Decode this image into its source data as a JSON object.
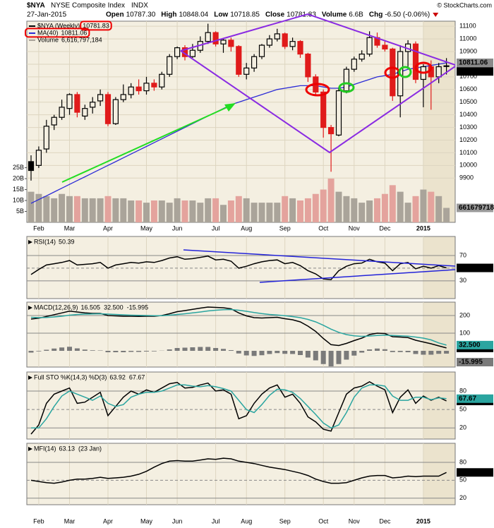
{
  "header": {
    "symbol": "$NYA",
    "name": "NYSE Composite Index",
    "exchange": "INDX",
    "date": "27-Jan-2015",
    "copyright": "© StockCharts.com",
    "quote": [
      {
        "label": "Open",
        "value": "10787.30"
      },
      {
        "label": "High",
        "value": "10848.04"
      },
      {
        "label": "Low",
        "value": "10718.85"
      },
      {
        "label": "Close",
        "value": "10781.83"
      },
      {
        "label": "Volume",
        "value": "6.6B"
      },
      {
        "label": "Chg",
        "value": "-6.50 (-0.06%)"
      }
    ]
  },
  "chart_data": [
    {
      "type": "candlestick",
      "categories": [
        null,
        "Feb",
        null,
        null,
        null,
        "Mar",
        null,
        null,
        null,
        null,
        "Apr",
        null,
        null,
        null,
        null,
        "May",
        null,
        null,
        null,
        "Jun",
        null,
        null,
        null,
        null,
        "Jul",
        null,
        null,
        null,
        "Aug",
        null,
        null,
        null,
        null,
        "Sep",
        null,
        null,
        null,
        null,
        "Oct",
        null,
        null,
        null,
        "Nov",
        null,
        null,
        null,
        "Dec",
        null,
        null,
        null,
        null,
        "2015",
        null,
        null,
        null
      ],
      "open": [
        10030,
        10000,
        10130,
        10320,
        10380,
        10450,
        10560,
        10390,
        10460,
        10510,
        10560,
        10330,
        10520,
        10560,
        10620,
        10590,
        10650,
        10620,
        10720,
        10860,
        10930,
        10860,
        10910,
        10980,
        11050,
        10960,
        10990,
        10940,
        10720,
        10770,
        10860,
        10950,
        11000,
        11040,
        10940,
        10980,
        10880,
        10700,
        10580,
        10300,
        10240,
        10590,
        10760,
        10840,
        10880,
        11010,
        10950,
        10920,
        10550,
        10900,
        10960,
        10680,
        10780,
        10700,
        10787.3
      ],
      "high": [
        10080,
        10150,
        10360,
        10400,
        10520,
        10570,
        10580,
        10480,
        10540,
        10600,
        10580,
        10540,
        10640,
        10650,
        10680,
        10700,
        10680,
        10740,
        10880,
        10940,
        10950,
        10960,
        11020,
        11120,
        11060,
        11000,
        11010,
        10950,
        10810,
        10880,
        10960,
        11030,
        11080,
        11050,
        11010,
        10990,
        10890,
        10720,
        10600,
        10320,
        10620,
        10780,
        10860,
        10910,
        11060,
        11050,
        10980,
        10930,
        10950,
        10990,
        10980,
        10800,
        10830,
        10810,
        10848.04
      ],
      "low": [
        9880,
        9980,
        10100,
        10280,
        10360,
        10400,
        10380,
        10360,
        10410,
        10470,
        10310,
        10320,
        10500,
        10530,
        10560,
        10560,
        10590,
        10600,
        10700,
        10840,
        10830,
        10850,
        10890,
        10960,
        10940,
        10890,
        10900,
        10700,
        10680,
        10740,
        10840,
        10930,
        10980,
        10920,
        10910,
        10850,
        10660,
        10560,
        10220,
        9950,
        10230,
        10570,
        10740,
        10820,
        10860,
        10930,
        10900,
        10510,
        10380,
        10780,
        10650,
        10460,
        10440,
        10650,
        10718.85
      ],
      "close": [
        9960,
        10120,
        10310,
        10380,
        10460,
        10560,
        10420,
        10450,
        10500,
        10560,
        10330,
        10520,
        10560,
        10620,
        10590,
        10650,
        10620,
        10720,
        10860,
        10930,
        10860,
        10910,
        10980,
        11050,
        10960,
        10990,
        10940,
        10720,
        10770,
        10860,
        10950,
        11000,
        11040,
        10940,
        10980,
        10880,
        10700,
        10580,
        10300,
        10250,
        10590,
        10760,
        10840,
        10880,
        11010,
        10950,
        10920,
        10550,
        10900,
        10960,
        10680,
        10780,
        10700,
        10780,
        10781.83
      ],
      "up_color": "#000000",
      "down_color": "#e01b1b",
      "ylim": [
        9550,
        11140
      ],
      "yticks": [
        9900,
        10000,
        10100,
        10200,
        10300,
        10400,
        10500,
        10600,
        10700,
        10800,
        10900,
        11000,
        11100
      ],
      "ma": {
        "color": "#2b2bd6",
        "values": [
          9700,
          9730,
          9760,
          9790,
          9820,
          9850,
          9880,
          9910,
          9940,
          9970,
          10000,
          10030,
          10060,
          10090,
          10120,
          10150,
          10180,
          10210,
          10240,
          10270,
          10300,
          10330,
          10360,
          10390,
          10420,
          10450,
          10480,
          10500,
          10520,
          10540,
          10560,
          10580,
          10600,
          10610,
          10620,
          10630,
          10630,
          10630,
          10620,
          10610,
          10610,
          10620,
          10640,
          10660,
          10680,
          10700,
          10710,
          10720,
          10740,
          10760,
          10770,
          10780,
          10790,
          10800,
          10811.06
        ]
      },
      "volume": {
        "up_color": "#aaa49a",
        "down_color": "#e4a39d",
        "ylim": [
          0,
          92000000000
        ],
        "yticks": [
          {
            "value": 5000000000,
            "label": "5B"
          },
          {
            "value": 10000000000,
            "label": "10B"
          },
          {
            "value": 15000000000,
            "label": "15B"
          },
          {
            "value": 20000000000,
            "label": "20B"
          },
          {
            "value": 25000000000,
            "label": "25B"
          }
        ],
        "values": [
          14000000000,
          13000000000,
          12000000000,
          11000000000,
          13000000000,
          12000000000,
          12000000000,
          11000000000,
          11000000000,
          11000000000,
          12000000000,
          11000000000,
          11000000000,
          10000000000,
          10000000000,
          9000000000,
          10000000000,
          10000000000,
          9000000000,
          11000000000,
          10000000000,
          10000000000,
          9000000000,
          11000000000,
          11000000000,
          8000000000,
          10000000000,
          12000000000,
          11000000000,
          9000000000,
          9000000000,
          9000000000,
          9000000000,
          12000000000,
          11000000000,
          10000000000,
          11000000000,
          13000000000,
          15000000000,
          20000000000,
          14000000000,
          12000000000,
          11000000000,
          9000000000,
          10000000000,
          11000000000,
          13000000000,
          17000000000,
          14000000000,
          9000000000,
          12000000000,
          15000000000,
          14000000000,
          12000000000,
          6616797184
        ]
      },
      "legend": [
        {
          "name": "$NYA (Weekly)",
          "value": "10781.83"
        },
        {
          "name": "MA(40)",
          "value": "10811.06"
        },
        {
          "name": "Volume",
          "value": "6,616,797,184"
        }
      ]
    },
    {
      "type": "line",
      "ylim": [
        2,
        100
      ],
      "yticks": [
        30,
        50,
        70
      ],
      "legend": {
        "name": "RSI(14)",
        "values": [
          "50.39"
        ]
      },
      "series": [
        {
          "color": "#000000",
          "values": [
            40,
            48,
            55,
            57,
            59,
            62,
            55,
            56,
            57,
            59,
            50,
            55,
            57,
            59,
            58,
            60,
            59,
            62,
            66,
            68,
            64,
            65,
            67,
            69,
            63,
            64,
            61,
            50,
            53,
            57,
            60,
            62,
            63,
            57,
            59,
            54,
            46,
            41,
            33,
            32,
            46,
            53,
            57,
            58,
            64,
            60,
            58,
            46,
            57,
            59,
            49,
            53,
            50,
            54,
            50.39
          ]
        }
      ]
    },
    {
      "type": "line",
      "ylim": [
        -92,
        276
      ],
      "yticks": [
        100,
        200
      ],
      "legend": {
        "name": "MACD(12,26,9)",
        "values": [
          "16.505",
          "32.500",
          "-15.995"
        ]
      },
      "series": [
        {
          "color": "#000000",
          "values": [
            180,
            185,
            195,
            205,
            215,
            225,
            220,
            215,
            212,
            212,
            200,
            198,
            196,
            196,
            195,
            196,
            196,
            200,
            210,
            222,
            228,
            235,
            242,
            248,
            246,
            244,
            238,
            215,
            198,
            188,
            186,
            188,
            190,
            182,
            176,
            164,
            140,
            110,
            70,
            35,
            30,
            42,
            58,
            72,
            92,
            100,
            98,
            80,
            78,
            75,
            60,
            50,
            40,
            28,
            16.505
          ]
        },
        {
          "color": "#2aa5a0",
          "values": [
            190,
            188,
            189,
            192,
            196,
            202,
            206,
            208,
            209,
            210,
            208,
            206,
            204,
            202,
            201,
            200,
            199,
            199,
            202,
            206,
            210,
            215,
            220,
            226,
            230,
            233,
            234,
            230,
            224,
            217,
            211,
            206,
            203,
            199,
            194,
            188,
            178,
            164,
            145,
            123,
            105,
            92,
            85,
            82,
            84,
            87,
            89,
            87,
            85,
            83,
            78,
            72,
            62,
            45,
            32.5
          ]
        },
        {
          "color": "#7a7a7a",
          "style": "bar",
          "values": [
            -10,
            -3,
            6,
            13,
            19,
            23,
            14,
            7,
            3,
            2,
            -8,
            -8,
            -8,
            -6,
            -6,
            -4,
            -3,
            1,
            8,
            16,
            18,
            20,
            22,
            22,
            16,
            11,
            4,
            -15,
            -26,
            -29,
            -25,
            -18,
            -13,
            -17,
            -18,
            -24,
            -38,
            -54,
            -75,
            -88,
            -75,
            -50,
            -27,
            -10,
            8,
            13,
            9,
            -7,
            -7,
            -8,
            -18,
            -22,
            -22,
            -17,
            -15.995
          ]
        }
      ]
    },
    {
      "type": "line",
      "ylim": [
        2,
        111
      ],
      "yticks": [
        20,
        50,
        80
      ],
      "legend": {
        "name": "Full STO %K(14,3) %D(3)",
        "values": [
          "63.92",
          "67.67"
        ]
      },
      "series": [
        {
          "color": "#000000",
          "values": [
            10,
            25,
            60,
            75,
            80,
            85,
            60,
            62,
            70,
            78,
            40,
            55,
            70,
            80,
            75,
            82,
            78,
            85,
            92,
            94,
            85,
            86,
            90,
            93,
            80,
            82,
            75,
            35,
            40,
            60,
            75,
            85,
            90,
            70,
            75,
            60,
            38,
            30,
            18,
            15,
            45,
            75,
            85,
            88,
            95,
            88,
            82,
            45,
            70,
            82,
            60,
            72,
            65,
            70,
            63.92
          ]
        },
        {
          "color": "#2aa5a0",
          "values": [
            20,
            20,
            35,
            55,
            72,
            80,
            75,
            70,
            65,
            72,
            60,
            55,
            58,
            70,
            75,
            78,
            78,
            80,
            85,
            90,
            90,
            88,
            87,
            89,
            87,
            84,
            80,
            65,
            50,
            45,
            58,
            73,
            83,
            82,
            78,
            68,
            55,
            42,
            28,
            20,
            25,
            45,
            70,
            85,
            90,
            90,
            88,
            72,
            65,
            65,
            70,
            70,
            66,
            69,
            67.67
          ]
        }
      ]
    },
    {
      "type": "line",
      "ylim": [
        9,
        112
      ],
      "yticks": [
        20,
        50,
        80
      ],
      "categories": [
        null,
        "Feb",
        null,
        null,
        null,
        "Mar",
        null,
        null,
        null,
        null,
        "Apr",
        null,
        null,
        null,
        null,
        "May",
        null,
        null,
        null,
        "Jun",
        null,
        null,
        null,
        null,
        "Jul",
        null,
        null,
        null,
        "Aug",
        null,
        null,
        null,
        null,
        "Sep",
        null,
        null,
        null,
        null,
        "Oct",
        null,
        null,
        null,
        "Nov",
        null,
        null,
        null,
        "Dec",
        null,
        null,
        null,
        null,
        "2015",
        null,
        null,
        null
      ],
      "legend": {
        "name": "MFI(14)",
        "values": [
          "63.13"
        ],
        "note": "(23 Jan)"
      },
      "series": [
        {
          "color": "#000000",
          "values": [
            50,
            48,
            46,
            45,
            47,
            50,
            52,
            52,
            53,
            55,
            53,
            54,
            55,
            57,
            60,
            65,
            72,
            78,
            82,
            83,
            82,
            82,
            84,
            86,
            85,
            87,
            86,
            82,
            80,
            78,
            75,
            72,
            70,
            68,
            65,
            62,
            58,
            52,
            48,
            45,
            45,
            46,
            50,
            54,
            57,
            58,
            58,
            54,
            55,
            57,
            56,
            57,
            57,
            57,
            63.13
          ]
        }
      ]
    }
  ]
}
